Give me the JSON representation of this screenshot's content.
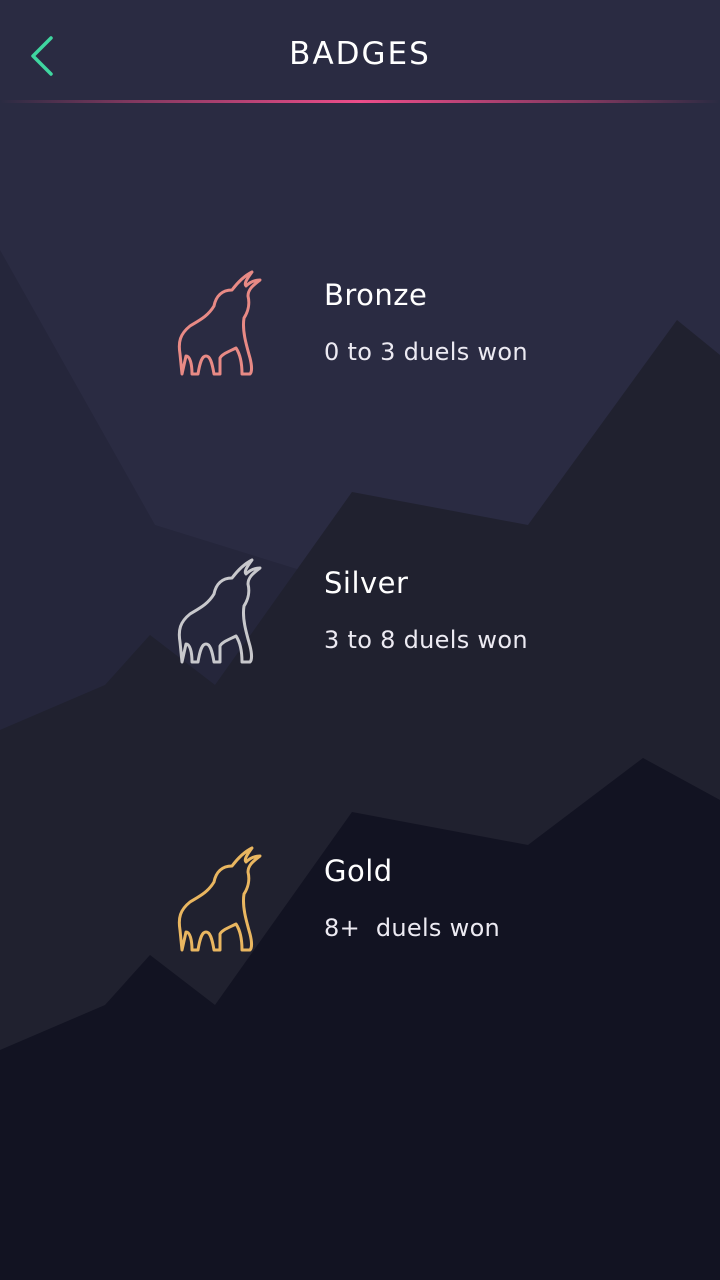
{
  "header": {
    "title": "BADGES",
    "back_icon": "chevron-left-icon",
    "accent_color": "#3fd6a0",
    "divider_color": "#ec4d8a"
  },
  "badges": [
    {
      "name": "Bronze",
      "description": "0 to 3 duels won",
      "icon": "bull-icon",
      "color": "#e88a85"
    },
    {
      "name": "Silver",
      "description": "3 to 8 duels won",
      "icon": "bull-icon",
      "color": "#c8c8cc"
    },
    {
      "name": "Gold",
      "description": "8+  duels won",
      "icon": "bull-icon",
      "color": "#e9b660"
    }
  ]
}
